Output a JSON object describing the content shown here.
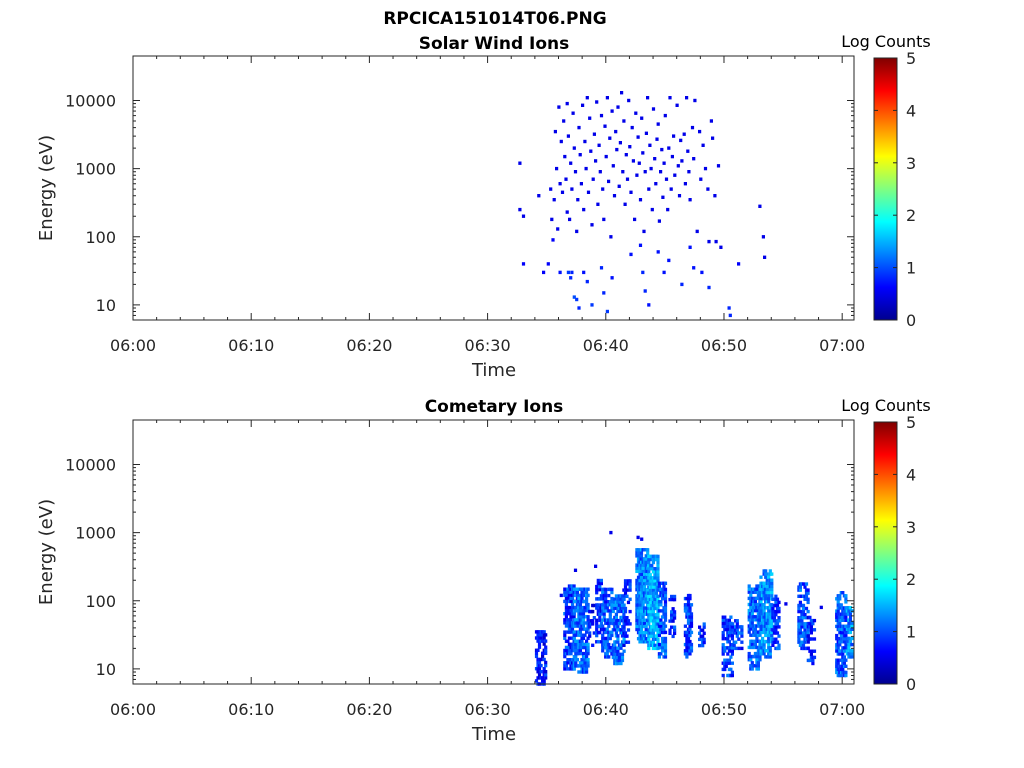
{
  "figure_title": "RPCICA151014T06.PNG",
  "colors": {
    "axis": "#262626",
    "background": "#ffffff",
    "colormap": [
      "#00008f",
      "#0000ff",
      "#0080ff",
      "#00ffff",
      "#80ff80",
      "#ffff00",
      "#ff8000",
      "#ff0000",
      "#800000"
    ]
  },
  "chart_data": [
    {
      "type": "heatmap",
      "title": "Solar Wind Ions",
      "xlabel": "Time",
      "ylabel": "Energy (eV)",
      "x_ticks": [
        "06:00",
        "06:10",
        "06:20",
        "06:30",
        "06:40",
        "06:50",
        "07:00"
      ],
      "x_range_minutes": [
        0,
        61
      ],
      "y_scale": "log",
      "y_ticks": [
        10,
        100,
        1000,
        10000
      ],
      "y_tick_labels": [
        "10",
        "100",
        "1000",
        "10000"
      ],
      "y_range": [
        6,
        45000
      ],
      "colorbar": {
        "label": "Log Counts",
        "range": [
          0,
          5
        ],
        "ticks": [
          "0",
          "1",
          "2",
          "3",
          "4",
          "5"
        ]
      },
      "grid": false,
      "cells": [
        [
          32.6,
          1200,
          0.5
        ],
        [
          32.6,
          250,
          0.5
        ],
        [
          32.9,
          200,
          0.5
        ],
        [
          32.9,
          40,
          0.6
        ],
        [
          34.2,
          400,
          0.5
        ],
        [
          34.6,
          30,
          0.6
        ],
        [
          35.0,
          40,
          0.6
        ],
        [
          35.2,
          500,
          0.5
        ],
        [
          35.3,
          180,
          0.5
        ],
        [
          35.4,
          90,
          0.6
        ],
        [
          35.5,
          350,
          0.5
        ],
        [
          35.6,
          3500,
          0.5
        ],
        [
          35.7,
          1000,
          0.5
        ],
        [
          35.8,
          130,
          0.5
        ],
        [
          35.9,
          8000,
          0.5
        ],
        [
          36.0,
          600,
          0.5
        ],
        [
          36.0,
          30,
          0.7
        ],
        [
          36.1,
          2500,
          0.5
        ],
        [
          36.2,
          450,
          0.5
        ],
        [
          36.3,
          5000,
          0.5
        ],
        [
          36.4,
          1500,
          0.5
        ],
        [
          36.5,
          700,
          0.5
        ],
        [
          36.6,
          9000,
          0.5
        ],
        [
          36.6,
          230,
          0.5
        ],
        [
          36.7,
          3000,
          0.5
        ],
        [
          36.8,
          180,
          0.5
        ],
        [
          36.9,
          1200,
          0.5
        ],
        [
          37.0,
          500,
          0.5
        ],
        [
          37.0,
          30,
          0.8
        ],
        [
          37.1,
          6500,
          0.5
        ],
        [
          37.2,
          2000,
          0.5
        ],
        [
          37.3,
          900,
          0.5
        ],
        [
          37.4,
          120,
          0.5
        ],
        [
          37.5,
          350,
          0.5
        ],
        [
          37.6,
          4000,
          0.5
        ],
        [
          37.7,
          1600,
          0.5
        ],
        [
          37.8,
          600,
          0.5
        ],
        [
          37.9,
          8500,
          0.5
        ],
        [
          38.0,
          250,
          0.5
        ],
        [
          38.0,
          30,
          0.7
        ],
        [
          38.1,
          2500,
          0.5
        ],
        [
          38.2,
          1000,
          0.5
        ],
        [
          38.3,
          11000,
          0.5
        ],
        [
          38.4,
          450,
          0.5
        ],
        [
          38.5,
          5500,
          0.5
        ],
        [
          38.6,
          1800,
          0.5
        ],
        [
          38.7,
          150,
          0.5
        ],
        [
          38.8,
          700,
          0.5
        ],
        [
          38.9,
          3200,
          0.5
        ],
        [
          39.0,
          1300,
          0.5
        ],
        [
          39.1,
          9500,
          0.5
        ],
        [
          39.2,
          300,
          0.5
        ],
        [
          39.3,
          2200,
          0.5
        ],
        [
          39.4,
          900,
          0.5
        ],
        [
          39.5,
          6000,
          0.5
        ],
        [
          39.6,
          500,
          0.5
        ],
        [
          39.7,
          180,
          0.5
        ],
        [
          39.8,
          4200,
          0.5
        ],
        [
          39.9,
          1500,
          0.5
        ],
        [
          40.0,
          11000,
          0.5
        ],
        [
          40.1,
          650,
          0.5
        ],
        [
          40.2,
          2800,
          0.5
        ],
        [
          40.3,
          100,
          0.5
        ],
        [
          40.4,
          7000,
          0.5
        ],
        [
          40.5,
          1100,
          0.5
        ],
        [
          40.6,
          400,
          0.5
        ],
        [
          40.7,
          3500,
          0.5
        ],
        [
          40.8,
          1900,
          0.5
        ],
        [
          40.9,
          8000,
          0.5
        ],
        [
          41.0,
          550,
          0.5
        ],
        [
          41.1,
          2400,
          0.5
        ],
        [
          41.2,
          13000,
          0.5
        ],
        [
          41.3,
          900,
          0.5
        ],
        [
          41.4,
          5000,
          0.5
        ],
        [
          41.5,
          300,
          0.5
        ],
        [
          41.6,
          1600,
          0.5
        ],
        [
          41.7,
          700,
          0.5
        ],
        [
          41.8,
          10000,
          0.5
        ],
        [
          41.9,
          2100,
          0.5
        ],
        [
          42.0,
          450,
          0.5
        ],
        [
          42.1,
          4000,
          0.5
        ],
        [
          42.2,
          1300,
          0.5
        ],
        [
          42.3,
          180,
          0.5
        ],
        [
          42.4,
          6500,
          0.5
        ],
        [
          42.5,
          800,
          0.5
        ],
        [
          42.6,
          2900,
          0.5
        ],
        [
          42.7,
          1200,
          0.5
        ],
        [
          42.8,
          350,
          0.5
        ],
        [
          42.9,
          5500,
          0.5
        ],
        [
          43.0,
          1700,
          0.5
        ],
        [
          43.1,
          120,
          0.5
        ],
        [
          43.2,
          900,
          0.5
        ],
        [
          43.3,
          3300,
          0.5
        ],
        [
          43.4,
          11000,
          0.5
        ],
        [
          43.5,
          500,
          0.5
        ],
        [
          43.6,
          2200,
          0.5
        ],
        [
          43.7,
          1000,
          0.5
        ],
        [
          43.8,
          250,
          0.5
        ],
        [
          43.9,
          7500,
          0.5
        ],
        [
          44.0,
          1400,
          0.5
        ],
        [
          44.1,
          600,
          0.5
        ],
        [
          44.2,
          2700,
          0.5
        ],
        [
          44.3,
          4500,
          0.5
        ],
        [
          44.4,
          170,
          0.5
        ],
        [
          44.5,
          900,
          0.5
        ],
        [
          44.6,
          1900,
          0.5
        ],
        [
          44.7,
          380,
          0.5
        ],
        [
          44.8,
          1200,
          0.5
        ],
        [
          44.9,
          6000,
          0.5
        ],
        [
          45.0,
          700,
          0.5
        ],
        [
          45.1,
          250,
          0.5
        ],
        [
          45.2,
          2000,
          0.5
        ],
        [
          45.3,
          11000,
          0.5
        ],
        [
          45.4,
          500,
          0.5
        ],
        [
          45.5,
          1500,
          0.5
        ],
        [
          45.6,
          3000,
          0.5
        ],
        [
          45.7,
          800,
          0.5
        ],
        [
          45.9,
          8500,
          0.5
        ],
        [
          46.0,
          1100,
          0.5
        ],
        [
          46.1,
          400,
          0.5
        ],
        [
          46.2,
          2600,
          0.5
        ],
        [
          46.3,
          1300,
          0.5
        ],
        [
          46.5,
          3200,
          0.5
        ],
        [
          46.6,
          600,
          0.5
        ],
        [
          46.7,
          11000,
          0.5
        ],
        [
          46.8,
          1800,
          0.5
        ],
        [
          46.9,
          900,
          0.5
        ],
        [
          47.0,
          350,
          0.5
        ],
        [
          47.2,
          4000,
          0.5
        ],
        [
          47.3,
          1400,
          0.5
        ],
        [
          47.4,
          10000,
          0.5
        ],
        [
          47.6,
          120,
          0.5
        ],
        [
          47.8,
          3500,
          0.5
        ],
        [
          47.9,
          700,
          0.5
        ],
        [
          48.1,
          2200,
          0.5
        ],
        [
          48.3,
          1000,
          0.5
        ],
        [
          48.5,
          500,
          0.5
        ],
        [
          48.6,
          85,
          0.5
        ],
        [
          48.8,
          5000,
          0.5
        ],
        [
          48.9,
          2800,
          0.5
        ],
        [
          49.1,
          400,
          0.5
        ],
        [
          49.2,
          85,
          0.5
        ],
        [
          49.4,
          1100,
          0.5
        ],
        [
          49.6,
          70,
          0.5
        ],
        [
          51.1,
          40,
          0.6
        ],
        [
          52.9,
          280,
          0.5
        ],
        [
          53.2,
          100,
          0.5
        ],
        [
          53.3,
          50,
          0.5
        ],
        [
          36.7,
          30,
          0.9
        ],
        [
          36.9,
          25,
          0.8
        ],
        [
          37.2,
          13,
          1.0
        ],
        [
          37.4,
          12,
          0.9
        ],
        [
          37.6,
          9,
          0.8
        ],
        [
          38.3,
          22,
          0.8
        ],
        [
          38.7,
          10,
          0.9
        ],
        [
          39.5,
          35,
          0.8
        ],
        [
          39.7,
          15,
          0.8
        ],
        [
          40.0,
          8,
          0.9
        ],
        [
          40.4,
          25,
          0.7
        ],
        [
          42.0,
          55,
          0.7
        ],
        [
          42.8,
          75,
          0.7
        ],
        [
          43.0,
          30,
          0.8
        ],
        [
          43.2,
          16,
          0.8
        ],
        [
          43.5,
          10,
          0.7
        ],
        [
          44.3,
          60,
          0.7
        ],
        [
          44.8,
          30,
          0.7
        ],
        [
          45.2,
          45,
          0.7
        ],
        [
          46.3,
          20,
          0.8
        ],
        [
          47.0,
          70,
          0.7
        ],
        [
          47.3,
          35,
          0.7
        ],
        [
          48.0,
          30,
          0.7
        ],
        [
          48.6,
          18,
          0.8
        ],
        [
          50.3,
          9,
          0.8
        ],
        [
          50.4,
          7,
          0.8
        ]
      ]
    },
    {
      "type": "heatmap",
      "title": "Cometary Ions",
      "xlabel": "Time",
      "ylabel": "Energy (eV)",
      "x_ticks": [
        "06:00",
        "06:10",
        "06:20",
        "06:30",
        "06:40",
        "06:50",
        "07:00"
      ],
      "x_range_minutes": [
        0,
        61
      ],
      "y_scale": "log",
      "y_ticks": [
        10,
        100,
        1000,
        10000
      ],
      "y_tick_labels": [
        "10",
        "100",
        "1000",
        "10000"
      ],
      "y_range": [
        6,
        45000
      ],
      "colorbar": {
        "label": "Log Counts",
        "range": [
          0,
          5
        ],
        "ticks": [
          "0",
          "1",
          "2",
          "3",
          "4",
          "5"
        ]
      },
      "grid": false,
      "clusters": [
        {
          "t_start": 34.0,
          "t_end": 34.8,
          "e_min": 6,
          "e_max": 38,
          "level": 0.7,
          "density": 0.55
        },
        {
          "t_start": 36.4,
          "t_end": 37.2,
          "e_min": 10,
          "e_max": 170,
          "level": 0.9,
          "density": 0.6
        },
        {
          "t_start": 37.2,
          "t_end": 38.5,
          "e_min": 9,
          "e_max": 150,
          "level": 1.1,
          "density": 0.65
        },
        {
          "t_start": 38.5,
          "t_end": 39.0,
          "e_min": 20,
          "e_max": 90,
          "level": 0.7,
          "density": 0.4
        },
        {
          "t_start": 39.1,
          "t_end": 39.6,
          "e_min": 25,
          "e_max": 220,
          "level": 0.8,
          "density": 0.45
        },
        {
          "t_start": 39.6,
          "t_end": 40.5,
          "e_min": 15,
          "e_max": 150,
          "level": 1.0,
          "density": 0.6
        },
        {
          "t_start": 40.5,
          "t_end": 41.5,
          "e_min": 12,
          "e_max": 120,
          "level": 1.1,
          "density": 0.6
        },
        {
          "t_start": 41.4,
          "t_end": 42.0,
          "e_min": 20,
          "e_max": 200,
          "level": 0.8,
          "density": 0.35
        },
        {
          "t_start": 42.5,
          "t_end": 43.5,
          "e_min": 25,
          "e_max": 600,
          "level": 1.2,
          "density": 0.75
        },
        {
          "t_start": 43.5,
          "t_end": 44.4,
          "e_min": 20,
          "e_max": 450,
          "level": 1.4,
          "density": 0.8
        },
        {
          "t_start": 44.4,
          "t_end": 45.0,
          "e_min": 15,
          "e_max": 200,
          "level": 1.0,
          "density": 0.6
        },
        {
          "t_start": 45.3,
          "t_end": 45.8,
          "e_min": 30,
          "e_max": 120,
          "level": 0.8,
          "density": 0.4
        },
        {
          "t_start": 46.6,
          "t_end": 47.2,
          "e_min": 15,
          "e_max": 120,
          "level": 0.9,
          "density": 0.55
        },
        {
          "t_start": 47.8,
          "t_end": 48.2,
          "e_min": 22,
          "e_max": 50,
          "level": 0.8,
          "density": 0.45
        },
        {
          "t_start": 49.8,
          "t_end": 50.6,
          "e_min": 8,
          "e_max": 60,
          "level": 0.9,
          "density": 0.55
        },
        {
          "t_start": 50.6,
          "t_end": 51.4,
          "e_min": 20,
          "e_max": 55,
          "level": 0.9,
          "density": 0.45
        },
        {
          "t_start": 52.0,
          "t_end": 53.0,
          "e_min": 10,
          "e_max": 180,
          "level": 1.1,
          "density": 0.6
        },
        {
          "t_start": 53.0,
          "t_end": 54.0,
          "e_min": 15,
          "e_max": 300,
          "level": 1.3,
          "density": 0.7
        },
        {
          "t_start": 54.0,
          "t_end": 54.6,
          "e_min": 20,
          "e_max": 120,
          "level": 0.9,
          "density": 0.5
        },
        {
          "t_start": 56.2,
          "t_end": 57.0,
          "e_min": 20,
          "e_max": 180,
          "level": 1.0,
          "density": 0.55
        },
        {
          "t_start": 57.0,
          "t_end": 57.6,
          "e_min": 12,
          "e_max": 60,
          "level": 0.8,
          "density": 0.45
        },
        {
          "t_start": 59.4,
          "t_end": 60.3,
          "e_min": 8,
          "e_max": 140,
          "level": 1.0,
          "density": 0.6
        },
        {
          "t_start": 60.3,
          "t_end": 61.0,
          "e_min": 15,
          "e_max": 80,
          "level": 1.3,
          "density": 0.65
        }
      ],
      "cells": [
        [
          40.3,
          1000,
          0.5
        ],
        [
          42.6,
          850,
          0.5
        ],
        [
          42.9,
          800,
          0.5
        ],
        [
          37.3,
          280,
          0.5
        ],
        [
          36.1,
          120,
          0.5
        ],
        [
          39.0,
          320,
          0.5
        ],
        [
          55.1,
          90,
          0.5
        ],
        [
          58.1,
          80,
          0.5
        ]
      ]
    }
  ]
}
